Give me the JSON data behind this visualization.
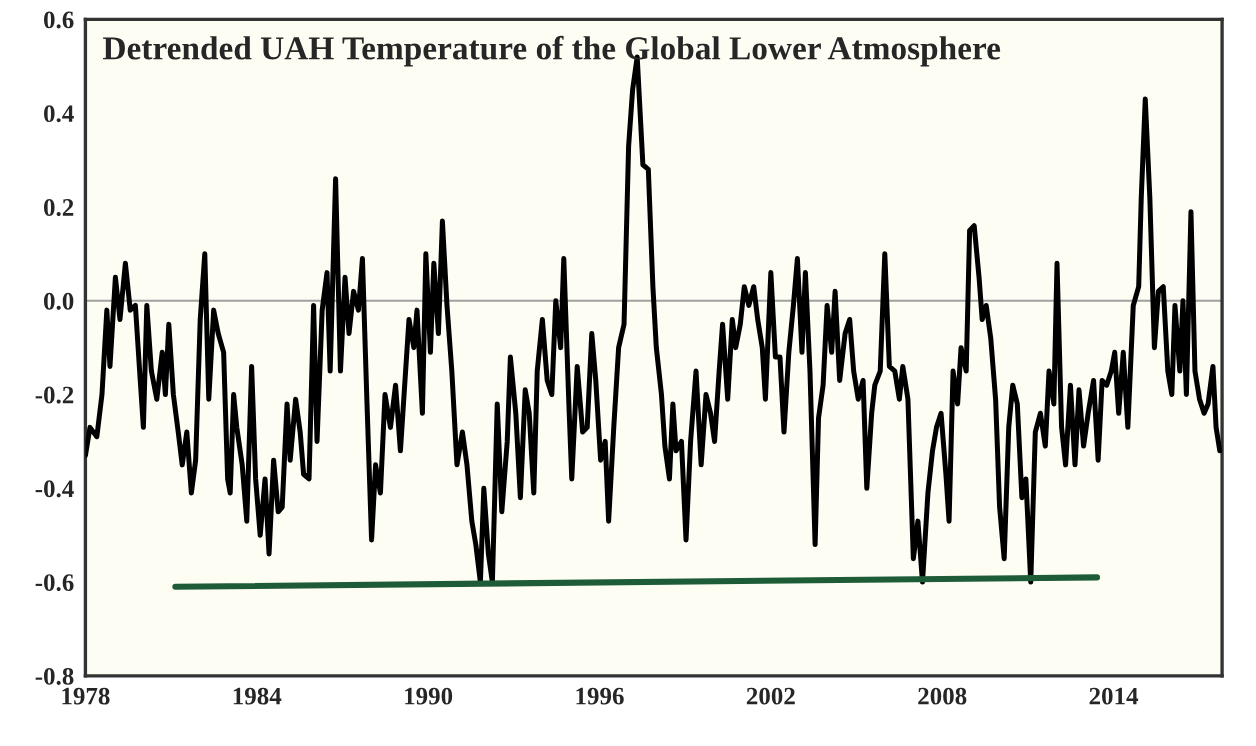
{
  "chart_data": {
    "type": "line",
    "title": "Detrended UAH Temperature of the Global Lower Atmosphere",
    "xlim": [
      1978,
      2017.8
    ],
    "ylim": [
      -0.8,
      0.6
    ],
    "xticks": [
      1978,
      1984,
      1990,
      1996,
      2002,
      2008,
      2014
    ],
    "yticks": [
      {
        "value": -0.8,
        "label": "-0.8"
      },
      {
        "value": -0.6,
        "label": "-0.6"
      },
      {
        "value": -0.4,
        "label": "-0.4"
      },
      {
        "value": -0.2,
        "label": "-0.2"
      },
      {
        "value": 0,
        "label": "0.0"
      },
      {
        "value": 0.2,
        "label": "0.2"
      },
      {
        "value": 0.4,
        "label": "0.4"
      },
      {
        "value": 0.6,
        "label": "0.6"
      }
    ],
    "grid": false,
    "marker": "none",
    "line_style": "solid",
    "ref_lines": [
      {
        "axis": "y",
        "value": 0,
        "color": "#a0a0a0"
      }
    ],
    "series": [
      {
        "color": "#000000",
        "x": [
          1978.0,
          1978.16,
          1978.4,
          1978.58,
          1978.75,
          1978.86,
          1979.05,
          1979.21,
          1979.4,
          1979.57,
          1979.75,
          1979.92,
          1980.03,
          1980.15,
          1980.31,
          1980.5,
          1980.69,
          1980.8,
          1980.92,
          1981.08,
          1981.25,
          1981.39,
          1981.55,
          1981.71,
          1981.86,
          1982.02,
          1982.18,
          1982.32,
          1982.49,
          1982.65,
          1982.84,
          1982.98,
          1983.07,
          1983.19,
          1983.3,
          1983.49,
          1983.65,
          1983.82,
          1983.96,
          1984.12,
          1984.29,
          1984.43,
          1984.59,
          1984.75,
          1984.89,
          1985.06,
          1985.17,
          1985.36,
          1985.52,
          1985.64,
          1985.83,
          1985.99,
          1986.11,
          1986.29,
          1986.46,
          1986.57,
          1986.76,
          1986.93,
          1987.09,
          1987.23,
          1987.39,
          1987.56,
          1987.7,
          1987.86,
          1988.02,
          1988.16,
          1988.33,
          1988.49,
          1988.68,
          1988.86,
          1989.03,
          1989.19,
          1989.33,
          1989.5,
          1989.61,
          1989.8,
          1989.92,
          1990.08,
          1990.2,
          1990.36,
          1990.5,
          1990.66,
          1990.83,
          1991.01,
          1991.2,
          1991.36,
          1991.53,
          1991.67,
          1991.83,
          1991.95,
          1992.11,
          1992.25,
          1992.42,
          1992.58,
          1992.77,
          1992.88,
          1993.07,
          1993.23,
          1993.4,
          1993.54,
          1993.7,
          1993.82,
          1994.0,
          1994.17,
          1994.33,
          1994.47,
          1994.64,
          1994.75,
          1994.94,
          1995.03,
          1995.22,
          1995.41,
          1995.57,
          1995.73,
          1995.87,
          1996.04,
          1996.2,
          1996.32,
          1996.5,
          1996.67,
          1996.86,
          1997.02,
          1997.16,
          1997.32,
          1997.52,
          1997.71,
          1997.87,
          1997.99,
          1998.17,
          1998.29,
          1998.45,
          1998.57,
          1998.68,
          1998.87,
          1999.03,
          1999.19,
          1999.38,
          1999.56,
          1999.73,
          1999.89,
          2000.03,
          2000.19,
          2000.31,
          2000.49,
          2000.65,
          2000.77,
          2000.93,
          2001.07,
          2001.23,
          2001.4,
          2001.54,
          2001.7,
          2001.81,
          2002.0,
          2002.16,
          2002.32,
          2002.46,
          2002.63,
          2002.79,
          2002.93,
          2003.09,
          2003.21,
          2003.37,
          2003.55,
          2003.67,
          2003.83,
          2003.97,
          2004.13,
          2004.25,
          2004.41,
          2004.6,
          2004.76,
          2004.9,
          2005.06,
          2005.23,
          2005.36,
          2005.53,
          2005.64,
          2005.83,
          2005.99,
          2006.15,
          2006.34,
          2006.5,
          2006.62,
          2006.8,
          2006.99,
          2007.15,
          2007.31,
          2007.5,
          2007.66,
          2007.8,
          2007.96,
          2008.13,
          2008.24,
          2008.38,
          2008.54,
          2008.66,
          2008.84,
          2008.96,
          2009.12,
          2009.29,
          2009.4,
          2009.54,
          2009.7,
          2009.87,
          2010.01,
          2010.17,
          2010.33,
          2010.47,
          2010.63,
          2010.79,
          2010.93,
          2011.1,
          2011.26,
          2011.44,
          2011.61,
          2011.74,
          2011.91,
          2012.02,
          2012.18,
          2012.32,
          2012.49,
          2012.65,
          2012.79,
          2012.95,
          2013.11,
          2013.3,
          2013.46,
          2013.6,
          2013.76,
          2013.92,
          2014.04,
          2014.18,
          2014.34,
          2014.5,
          2014.69,
          2014.88,
          2014.97,
          2015.11,
          2015.27,
          2015.43,
          2015.57,
          2015.74,
          2015.9,
          2016.04,
          2016.15,
          2016.32,
          2016.43,
          2016.55,
          2016.71,
          2016.85,
          2017.01,
          2017.17,
          2017.31,
          2017.48,
          2017.59,
          2017.72
        ],
        "values": [
          -0.33,
          -0.27,
          -0.29,
          -0.2,
          -0.02,
          -0.14,
          0.05,
          -0.04,
          0.08,
          -0.02,
          -0.01,
          -0.17,
          -0.27,
          -0.01,
          -0.15,
          -0.21,
          -0.11,
          -0.2,
          -0.05,
          -0.2,
          -0.28,
          -0.35,
          -0.28,
          -0.41,
          -0.34,
          -0.04,
          0.1,
          -0.21,
          -0.02,
          -0.07,
          -0.11,
          -0.38,
          -0.41,
          -0.2,
          -0.27,
          -0.35,
          -0.47,
          -0.14,
          -0.38,
          -0.5,
          -0.38,
          -0.54,
          -0.34,
          -0.45,
          -0.44,
          -0.22,
          -0.34,
          -0.21,
          -0.28,
          -0.37,
          -0.38,
          -0.01,
          -0.3,
          -0.02,
          0.06,
          -0.15,
          0.26,
          -0.15,
          0.05,
          -0.07,
          0.02,
          -0.02,
          0.09,
          -0.22,
          -0.51,
          -0.35,
          -0.41,
          -0.2,
          -0.27,
          -0.18,
          -0.32,
          -0.17,
          -0.04,
          -0.1,
          -0.02,
          -0.24,
          0.1,
          -0.11,
          0.08,
          -0.07,
          0.17,
          -0.01,
          -0.15,
          -0.35,
          -0.28,
          -0.35,
          -0.47,
          -0.52,
          -0.6,
          -0.4,
          -0.54,
          -0.6,
          -0.22,
          -0.45,
          -0.3,
          -0.12,
          -0.24,
          -0.42,
          -0.19,
          -0.24,
          -0.41,
          -0.15,
          -0.04,
          -0.17,
          -0.2,
          0.0,
          -0.1,
          0.09,
          -0.24,
          -0.38,
          -0.14,
          -0.28,
          -0.27,
          -0.07,
          -0.17,
          -0.34,
          -0.3,
          -0.47,
          -0.27,
          -0.1,
          -0.05,
          0.33,
          0.45,
          0.52,
          0.29,
          0.28,
          0.03,
          -0.1,
          -0.2,
          -0.31,
          -0.38,
          -0.22,
          -0.32,
          -0.3,
          -0.51,
          -0.3,
          -0.15,
          -0.35,
          -0.2,
          -0.24,
          -0.3,
          -0.15,
          -0.05,
          -0.21,
          -0.04,
          -0.1,
          -0.05,
          0.03,
          -0.01,
          0.03,
          -0.04,
          -0.1,
          -0.21,
          0.06,
          -0.12,
          -0.12,
          -0.28,
          -0.11,
          -0.01,
          0.09,
          -0.11,
          0.06,
          -0.15,
          -0.52,
          -0.25,
          -0.18,
          -0.01,
          -0.11,
          0.02,
          -0.17,
          -0.07,
          -0.04,
          -0.15,
          -0.21,
          -0.17,
          -0.4,
          -0.24,
          -0.18,
          -0.15,
          0.1,
          -0.14,
          -0.15,
          -0.21,
          -0.14,
          -0.21,
          -0.55,
          -0.47,
          -0.6,
          -0.41,
          -0.32,
          -0.27,
          -0.24,
          -0.37,
          -0.47,
          -0.15,
          -0.22,
          -0.1,
          -0.15,
          0.15,
          0.16,
          0.05,
          -0.04,
          -0.01,
          -0.08,
          -0.21,
          -0.44,
          -0.55,
          -0.27,
          -0.18,
          -0.22,
          -0.42,
          -0.38,
          -0.6,
          -0.28,
          -0.24,
          -0.31,
          -0.15,
          -0.22,
          0.08,
          -0.27,
          -0.35,
          -0.18,
          -0.35,
          -0.19,
          -0.31,
          -0.24,
          -0.17,
          -0.34,
          -0.17,
          -0.18,
          -0.15,
          -0.11,
          -0.24,
          -0.11,
          -0.27,
          -0.01,
          0.03,
          0.22,
          0.43,
          0.22,
          -0.1,
          0.02,
          0.03,
          -0.15,
          -0.2,
          -0.01,
          -0.15,
          0.0,
          -0.2,
          0.19,
          -0.15,
          -0.21,
          -0.24,
          -0.22,
          -0.14,
          -0.27,
          -0.32
        ]
      },
      {
        "type": "line",
        "color": "#1e5c37",
        "x": [
          1981.15,
          2013.42
        ],
        "values": [
          -0.61,
          -0.59
        ]
      }
    ]
  }
}
